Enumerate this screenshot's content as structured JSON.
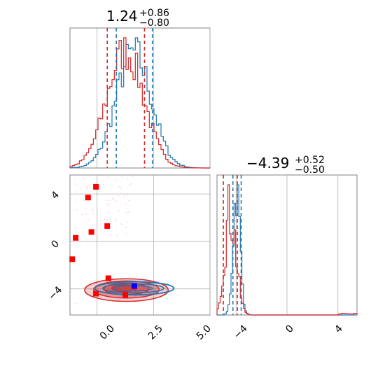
{
  "chart_data": {
    "type": "corner",
    "colors": {
      "series_a": "#1f77b4",
      "series_b": "#d62728",
      "grid": "#b0b0b0",
      "axes": "#808080"
    },
    "panels": [
      {
        "id": "hist-param-1",
        "type": "histogram",
        "title": {
          "value": "1.24",
          "plus": "+0.86",
          "minus": "−0.80"
        },
        "xlim": [
          -1.2,
          5.0
        ],
        "x_ticks": [
          "0.0",
          "2.5",
          "5.0"
        ],
        "quantiles": {
          "series_a": [
            0.85,
            2.45
          ],
          "series_b": [
            0.45,
            2.1
          ]
        },
        "series": [
          {
            "color": "#1f77b4",
            "mean": 1.62,
            "sd": 0.78
          },
          {
            "color": "#d62728",
            "mean": 1.25,
            "sd": 0.82
          }
        ]
      },
      {
        "id": "hist-param-2",
        "type": "histogram",
        "title": {
          "value": "−4.39",
          "plus": "+0.52",
          "minus": "−0.50"
        },
        "xlim": [
          -5.5,
          5.5
        ],
        "x_ticks": [
          "−4",
          "0",
          "4"
        ],
        "quantiles": {
          "series_a": [
            -4.25,
            -3.6
          ],
          "series_b": [
            -5.0,
            -3.9
          ]
        },
        "series": [
          {
            "color": "#1f77b4",
            "mean": -3.95,
            "sd": 0.28
          },
          {
            "color": "#d62728",
            "mean": -4.45,
            "sd": 0.45
          }
        ],
        "outlier_bump": {
          "x_range": [
            4.0,
            5.5
          ]
        }
      },
      {
        "id": "scatter-2d",
        "type": "contour-scatter",
        "xlim": [
          -1.2,
          5.0
        ],
        "ylim": [
          -6.2,
          5.6
        ],
        "x_ticks": [
          "0.0",
          "2.5",
          "5.0"
        ],
        "y_ticks": [
          "−4",
          "0",
          "4"
        ],
        "red_markers": [
          [
            -1.1,
            -1.5
          ],
          [
            -0.95,
            0.3
          ],
          [
            -0.25,
            0.8
          ],
          [
            -0.4,
            3.7
          ],
          [
            -0.05,
            4.6
          ],
          [
            0.45,
            1.3
          ],
          [
            0.5,
            -3.1
          ],
          [
            -0.05,
            -4.4
          ],
          [
            1.25,
            -4.5
          ]
        ],
        "blue_markers": [
          [
            1.65,
            -3.75
          ]
        ]
      }
    ]
  }
}
